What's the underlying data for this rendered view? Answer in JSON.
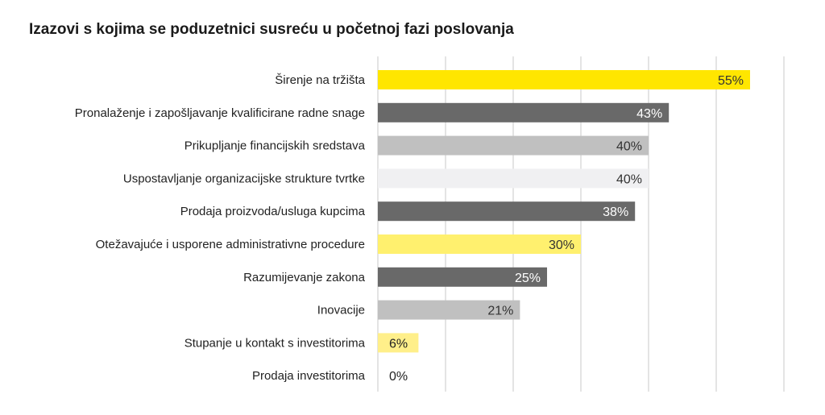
{
  "chart_data": {
    "type": "bar",
    "orientation": "horizontal",
    "title": "Izazovi s kojima se poduzetnici susreću u početnoj fazi poslovanja",
    "categories": [
      "Širenje na tržišta",
      "Pronalaženje i zapošljavanje kvalificirane radne snage",
      "Prikupljanje financijskih sredstava",
      "Uspostavljanje organizacijske strukture tvrtke",
      "Prodaja proizvoda/usluga kupcima",
      "Otežavajuće i usporene administrativne procedure",
      "Razumijevanje zakona",
      "Inovacije",
      "Stupanje u kontakt s investitorima",
      "Prodaja investitorima"
    ],
    "values": [
      55,
      43,
      40,
      40,
      38,
      30,
      25,
      21,
      6,
      0
    ],
    "labels": [
      "55%",
      "43%",
      "40%",
      "40%",
      "38%",
      "30%",
      "25%",
      "21%",
      "6%",
      "0%"
    ],
    "bar_colors": [
      "#FFE600",
      "#696969",
      "#C0C0C0",
      "#F0F0F2",
      "#696969",
      "#FFF06E",
      "#696969",
      "#C0C0C0",
      "#FFEF8A",
      "#FFE600"
    ],
    "label_colors": [
      "#333333",
      "#FFFFFF",
      "#333333",
      "#333333",
      "#FFFFFF",
      "#333333",
      "#FFFFFF",
      "#333333",
      "#222222",
      "#222222"
    ],
    "xlim": [
      0,
      60
    ],
    "grid": true,
    "xlabel": "",
    "ylabel": ""
  }
}
